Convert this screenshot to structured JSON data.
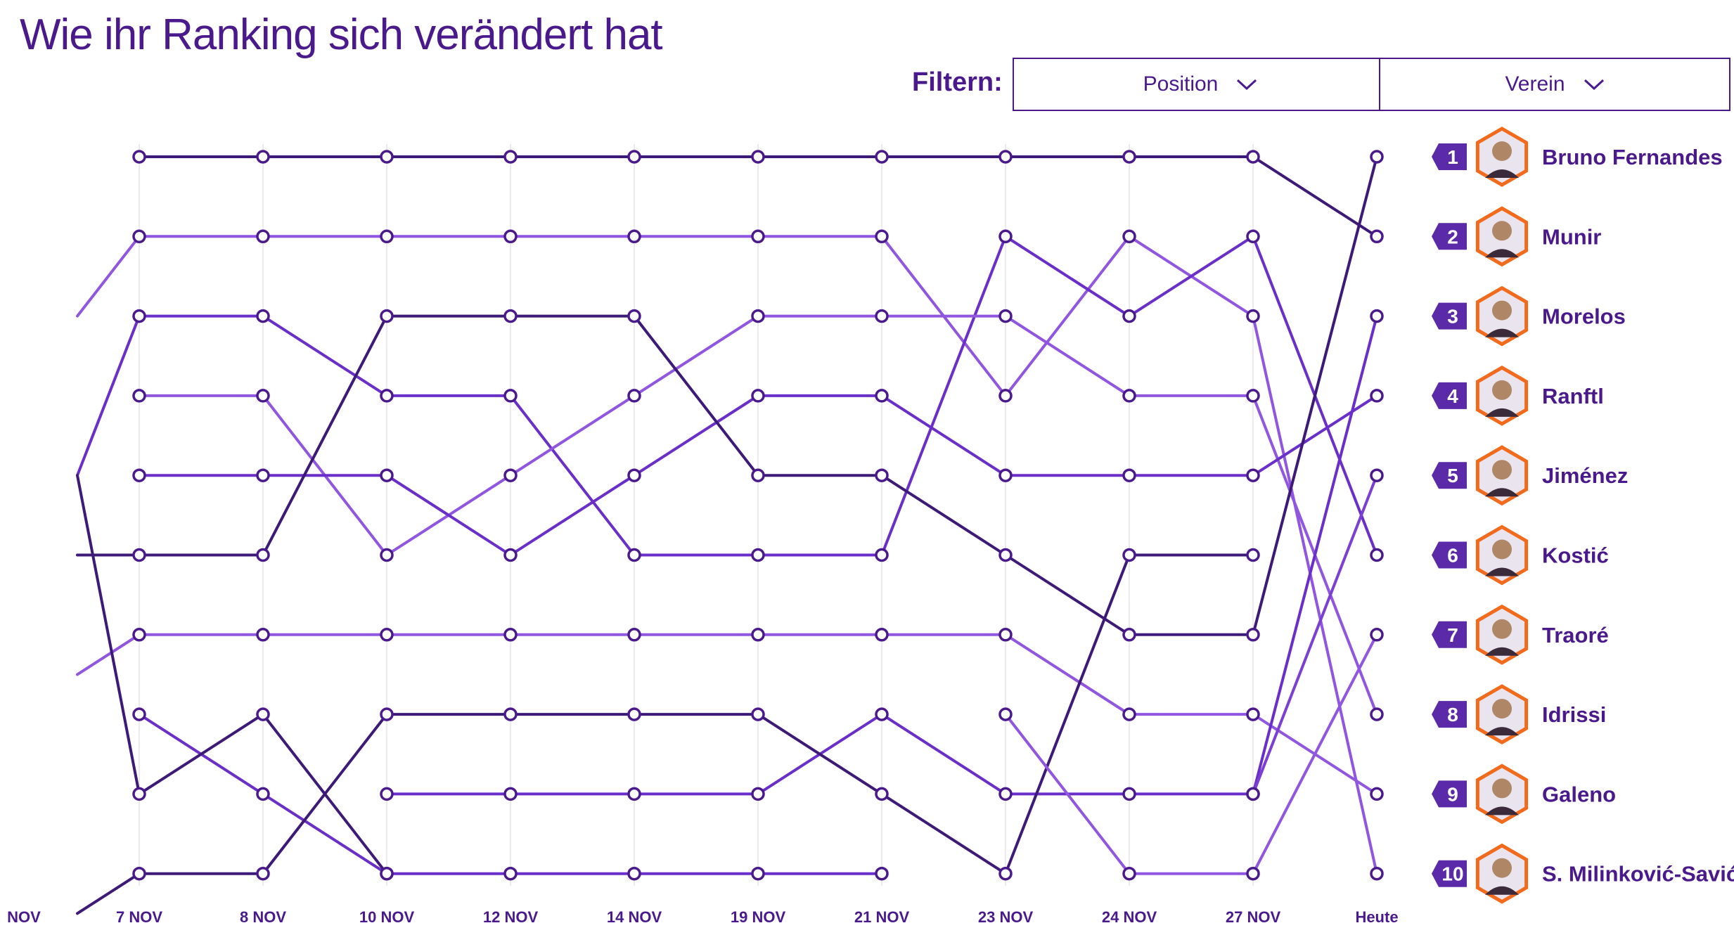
{
  "title": "Wie ihr Ranking sich verändert hat",
  "filters": {
    "label": "Filtern:",
    "position": "Position",
    "verein": "Verein"
  },
  "colors": {
    "primary": "#4a1a8c",
    "series": [
      "#3e1a78",
      "#6b2fc9",
      "#9156e0",
      "#7b3fd4"
    ],
    "avatar_border": "#f26a1b"
  },
  "icons": {
    "dropdown": "chevron-down-icon"
  },
  "chart_data": {
    "type": "line",
    "x": [
      "NOV",
      "7 NOV",
      "8 NOV",
      "10 NOV",
      "12 NOV",
      "14 NOV",
      "19 NOV",
      "21 NOV",
      "23 NOV",
      "24 NOV",
      "27 NOV",
      "Heute"
    ],
    "ylim": [
      1,
      10
    ],
    "y_reversed": true,
    "players": [
      {
        "name": "Bruno Fernandes",
        "rank": "1"
      },
      {
        "name": "Munir",
        "rank": "2"
      },
      {
        "name": "Morelos",
        "rank": "3"
      },
      {
        "name": "Ranftl",
        "rank": "4"
      },
      {
        "name": "Jiménez",
        "rank": "5"
      },
      {
        "name": "Kostić",
        "rank": "6"
      },
      {
        "name": "Traoré",
        "rank": "7"
      },
      {
        "name": "Idrissi",
        "rank": "8"
      },
      {
        "name": "Galeno",
        "rank": "9"
      },
      {
        "name": "S. Milinković-Savić",
        "rank": "10"
      }
    ],
    "series": [
      {
        "values": [
          null,
          1,
          1,
          1,
          1,
          1,
          1,
          1,
          1,
          1,
          1,
          2
        ],
        "color": "#3e1a78"
      },
      {
        "values": [
          3,
          2,
          2,
          2,
          2,
          2,
          2,
          2,
          4,
          2,
          3,
          10
        ],
        "color": "#9156e0"
      },
      {
        "values": [
          5,
          3,
          3,
          4,
          4,
          6,
          6,
          6,
          2,
          3,
          2,
          6
        ],
        "color": "#6b2fc9"
      },
      {
        "values": [
          null,
          4,
          4,
          6,
          5,
          4,
          3,
          3,
          3,
          4,
          4,
          8
        ],
        "color": "#9156e0"
      },
      {
        "values": [
          null,
          5,
          5,
          5,
          6,
          5,
          4,
          4,
          5,
          5,
          5,
          4
        ],
        "color": "#6b2fc9"
      },
      {
        "values": [
          6,
          6,
          6,
          3,
          3,
          3,
          5,
          5,
          6,
          7,
          7,
          1
        ],
        "color": "#3e1a78"
      },
      {
        "values": [
          7.5,
          7,
          7,
          7,
          7,
          7,
          7,
          7,
          7,
          8,
          8,
          9
        ],
        "color": "#9156e0"
      },
      {
        "values": [
          null,
          8,
          9,
          10,
          10,
          10,
          10,
          10,
          null,
          null,
          null,
          null
        ],
        "color": "#6b2fc9"
      },
      {
        "values": [
          5,
          9,
          8,
          10,
          null,
          null,
          null,
          null,
          null,
          null,
          null,
          null
        ],
        "color": "#3e1a78"
      },
      {
        "values": [
          null,
          null,
          null,
          9,
          9,
          9,
          9,
          8,
          9,
          9,
          9,
          3
        ],
        "color": "#6b2fc9"
      },
      {
        "values": [
          10.5,
          10,
          10,
          8,
          8,
          8,
          8,
          9,
          10,
          6,
          6,
          null
        ],
        "color": "#3e1a78"
      },
      {
        "values": [
          null,
          null,
          null,
          null,
          null,
          null,
          null,
          null,
          8,
          10,
          10,
          7
        ],
        "color": "#9156e0"
      },
      {
        "values": [
          null,
          null,
          null,
          null,
          null,
          null,
          null,
          null,
          null,
          null,
          9,
          5
        ],
        "color": "#7b3fd4"
      }
    ]
  }
}
